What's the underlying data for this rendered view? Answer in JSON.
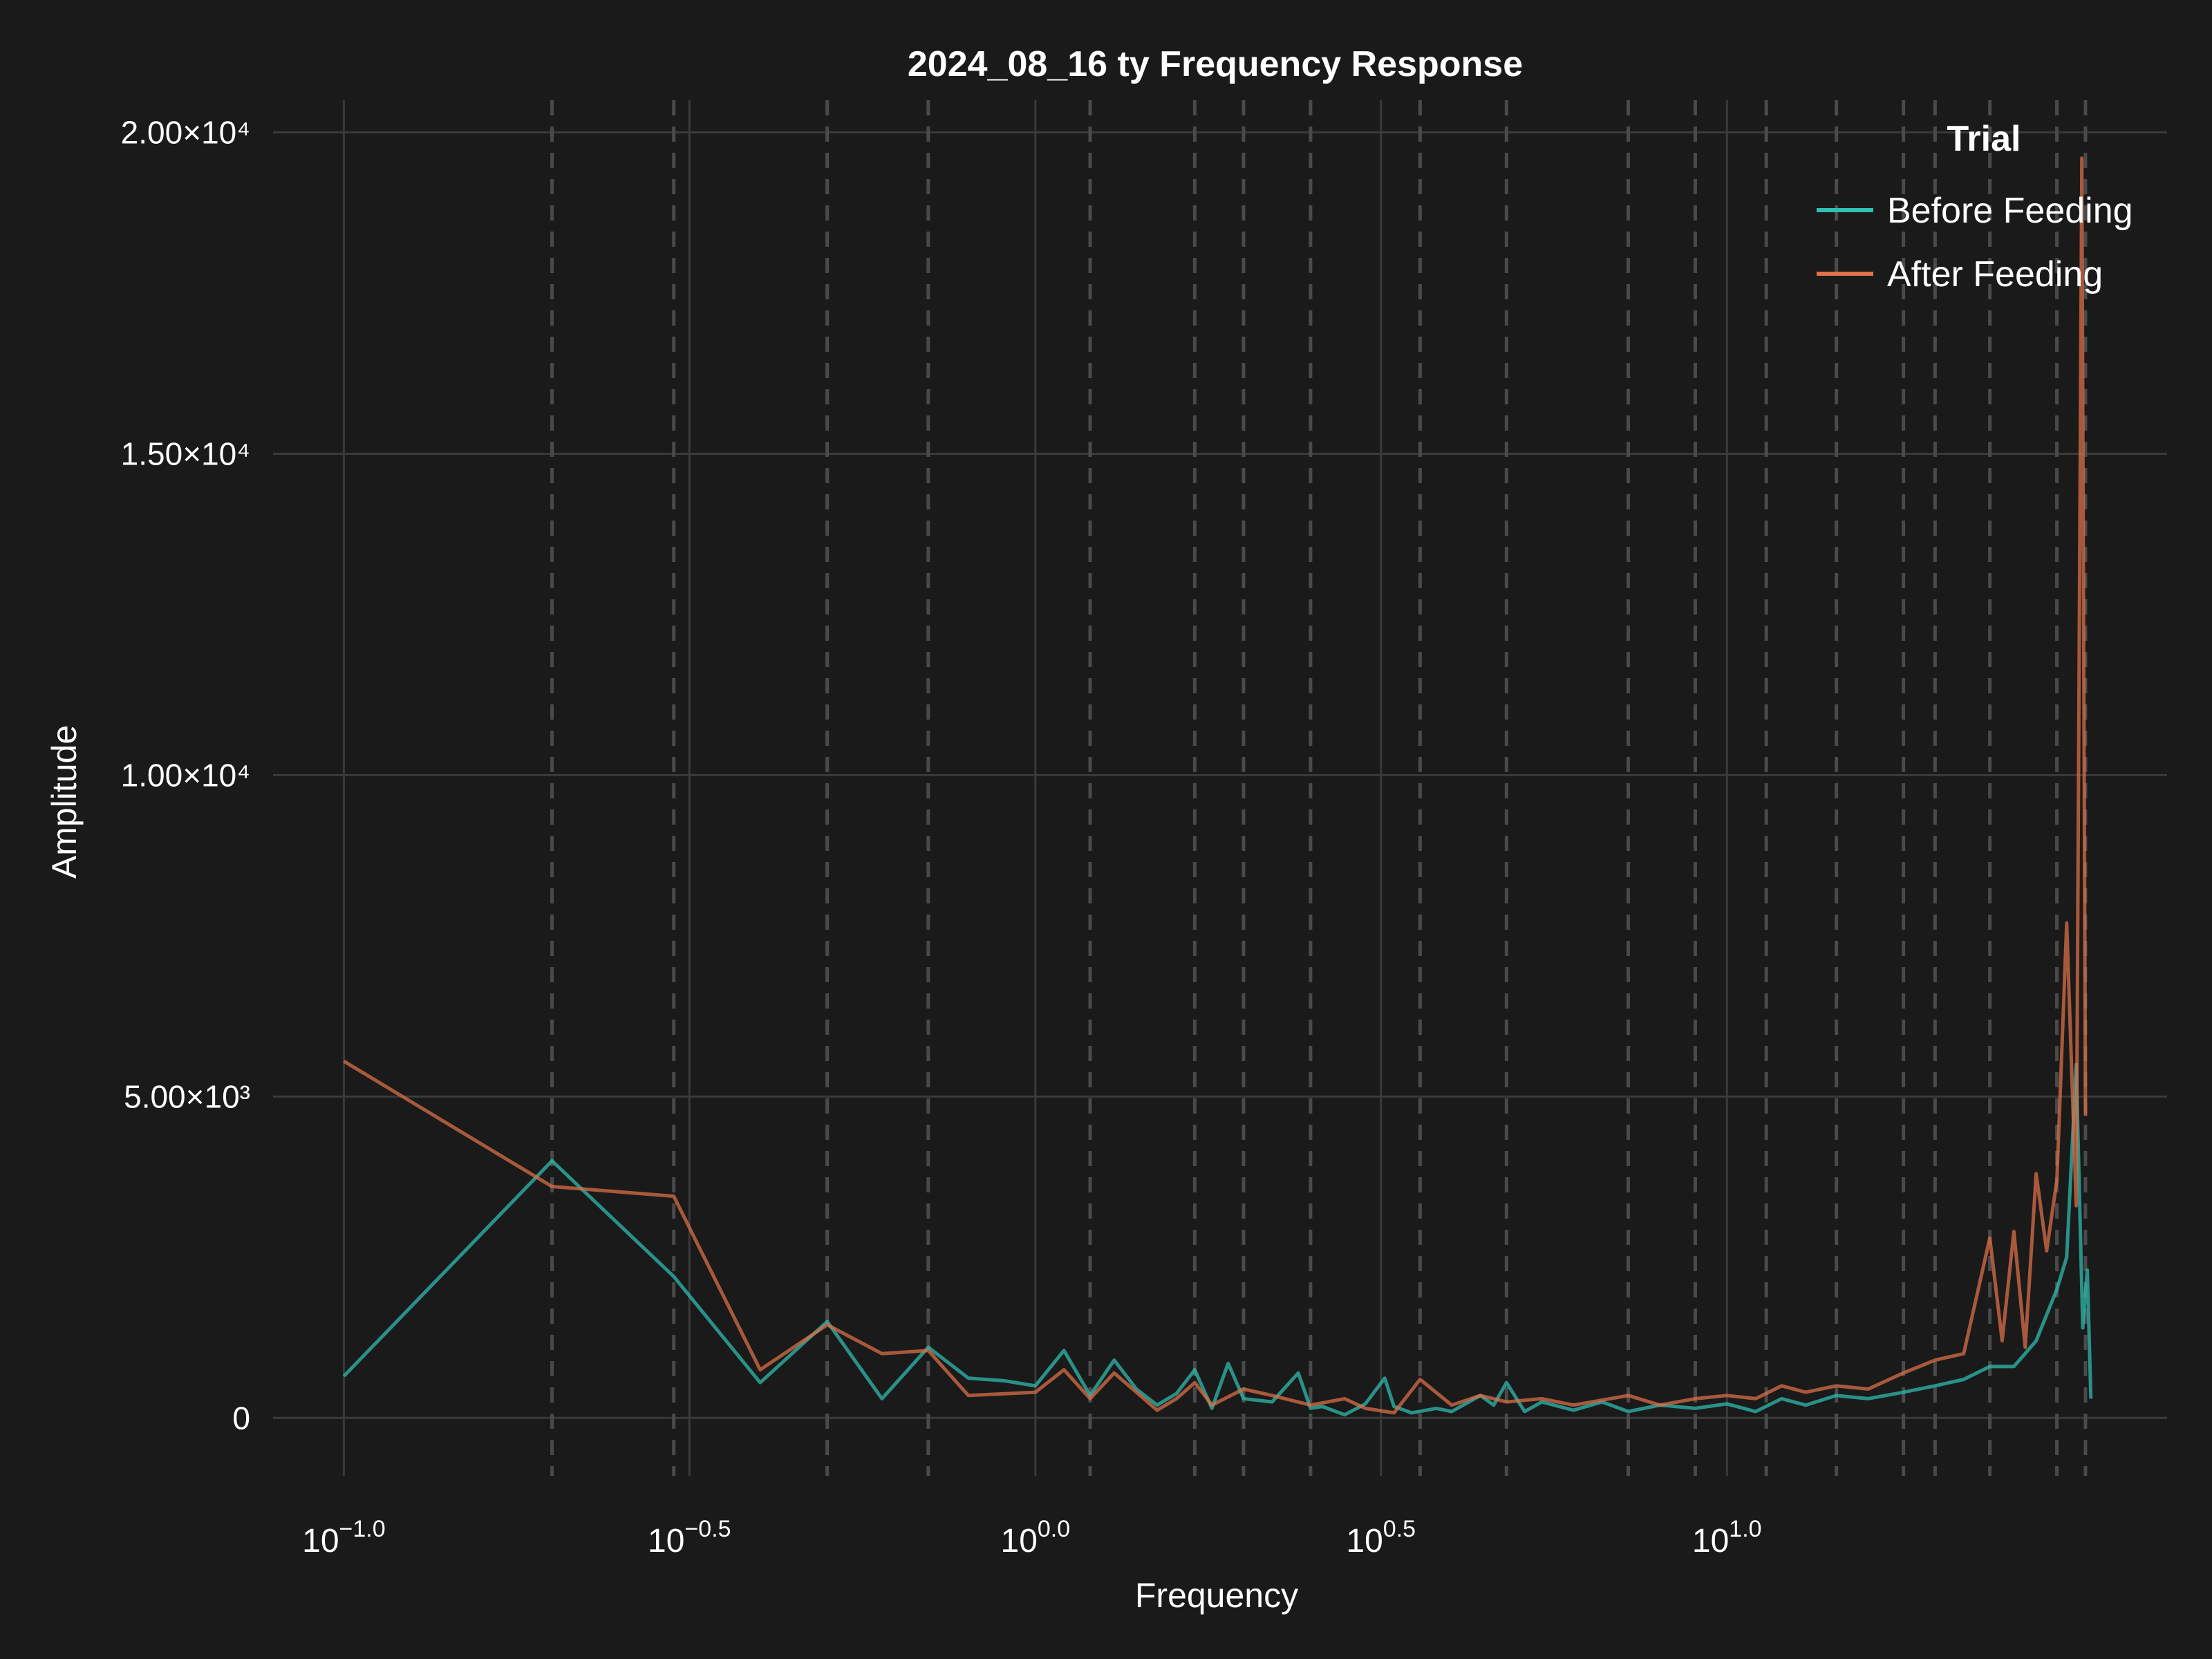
{
  "chart_data": {
    "type": "line",
    "title": "2024_08_16 ty Frequency Response",
    "xlabel": "Frequency",
    "ylabel": "Amplitude",
    "x_scale": "log10",
    "xlim": [
      0.079,
      43.3
    ],
    "ylim": [
      -900,
      20500
    ],
    "xticks": [
      {
        "value": 0.1,
        "base": "10",
        "exp": "−1.0"
      },
      {
        "value": 0.316,
        "base": "10",
        "exp": "−0.5"
      },
      {
        "value": 1.0,
        "base": "10",
        "exp": "0.0"
      },
      {
        "value": 3.16,
        "base": "10",
        "exp": "0.5"
      },
      {
        "value": 10.0,
        "base": "10",
        "exp": "1.0"
      }
    ],
    "yticks": [
      {
        "value": 0,
        "label": "0"
      },
      {
        "value": 5000,
        "label": "5.00×10³"
      },
      {
        "value": 10000,
        "label": "1.00×10⁴"
      },
      {
        "value": 15000,
        "label": "1.50×10⁴"
      },
      {
        "value": 20000,
        "label": "2.00×10⁴"
      }
    ],
    "vlines": [
      0.2,
      0.3,
      0.5,
      0.7,
      1.2,
      1.7,
      2.0,
      2.5,
      3.6,
      4.8,
      7.2,
      9.0,
      11.4,
      14.4,
      18.0,
      20.0,
      24.0,
      30.0,
      33.0
    ],
    "grid": true,
    "legend": {
      "title": "Trial",
      "position": "top-right"
    },
    "series": [
      {
        "name": "Before Feeding",
        "color": "#2fbfb3",
        "points": [
          [
            0.1,
            650
          ],
          [
            0.2,
            4000
          ],
          [
            0.3,
            2200
          ],
          [
            0.4,
            550
          ],
          [
            0.5,
            1500
          ],
          [
            0.6,
            300
          ],
          [
            0.7,
            1100
          ],
          [
            0.8,
            620
          ],
          [
            0.9,
            580
          ],
          [
            1.0,
            500
          ],
          [
            1.1,
            1050
          ],
          [
            1.2,
            350
          ],
          [
            1.3,
            900
          ],
          [
            1.4,
            450
          ],
          [
            1.5,
            200
          ],
          [
            1.6,
            380
          ],
          [
            1.7,
            750
          ],
          [
            1.8,
            150
          ],
          [
            1.9,
            850
          ],
          [
            2.0,
            300
          ],
          [
            2.2,
            250
          ],
          [
            2.4,
            700
          ],
          [
            2.5,
            150
          ],
          [
            2.6,
            180
          ],
          [
            2.8,
            50
          ],
          [
            3.0,
            220
          ],
          [
            3.2,
            620
          ],
          [
            3.3,
            180
          ],
          [
            3.5,
            80
          ],
          [
            3.8,
            150
          ],
          [
            4.0,
            100
          ],
          [
            4.4,
            350
          ],
          [
            4.6,
            200
          ],
          [
            4.8,
            550
          ],
          [
            5.1,
            100
          ],
          [
            5.4,
            250
          ],
          [
            6.0,
            120
          ],
          [
            6.6,
            250
          ],
          [
            7.2,
            100
          ],
          [
            8.0,
            200
          ],
          [
            9.0,
            150
          ],
          [
            10.0,
            220
          ],
          [
            11.0,
            100
          ],
          [
            12.0,
            300
          ],
          [
            13.0,
            200
          ],
          [
            14.4,
            350
          ],
          [
            16.0,
            300
          ],
          [
            18.0,
            400
          ],
          [
            20.0,
            500
          ],
          [
            22.0,
            600
          ],
          [
            24.0,
            800
          ],
          [
            26.0,
            800
          ],
          [
            28.0,
            1200
          ],
          [
            30.0,
            2000
          ],
          [
            31.0,
            2500
          ],
          [
            32.0,
            5500
          ],
          [
            32.7,
            1400
          ],
          [
            33.2,
            2300
          ],
          [
            33.6,
            300
          ]
        ]
      },
      {
        "name": "After Feeding",
        "color": "#e07248",
        "points": [
          [
            0.1,
            5550
          ],
          [
            0.2,
            3600
          ],
          [
            0.3,
            3450
          ],
          [
            0.4,
            750
          ],
          [
            0.5,
            1450
          ],
          [
            0.6,
            1000
          ],
          [
            0.7,
            1050
          ],
          [
            0.8,
            350
          ],
          [
            1.0,
            400
          ],
          [
            1.1,
            750
          ],
          [
            1.2,
            300
          ],
          [
            1.3,
            700
          ],
          [
            1.5,
            120
          ],
          [
            1.6,
            300
          ],
          [
            1.7,
            550
          ],
          [
            1.8,
            200
          ],
          [
            2.0,
            450
          ],
          [
            2.2,
            350
          ],
          [
            2.5,
            200
          ],
          [
            2.8,
            300
          ],
          [
            3.0,
            150
          ],
          [
            3.3,
            80
          ],
          [
            3.6,
            600
          ],
          [
            4.0,
            200
          ],
          [
            4.4,
            350
          ],
          [
            4.8,
            250
          ],
          [
            5.4,
            300
          ],
          [
            6.0,
            200
          ],
          [
            7.2,
            350
          ],
          [
            8.0,
            200
          ],
          [
            9.0,
            300
          ],
          [
            10.0,
            350
          ],
          [
            11.0,
            300
          ],
          [
            12.0,
            500
          ],
          [
            13.0,
            400
          ],
          [
            14.4,
            500
          ],
          [
            16.0,
            450
          ],
          [
            18.0,
            700
          ],
          [
            20.0,
            900
          ],
          [
            22.0,
            1000
          ],
          [
            24.0,
            2800
          ],
          [
            25.0,
            1200
          ],
          [
            26.0,
            2900
          ],
          [
            27.0,
            1100
          ],
          [
            28.0,
            3800
          ],
          [
            29.0,
            2600
          ],
          [
            30.0,
            3700
          ],
          [
            31.0,
            7700
          ],
          [
            32.0,
            3300
          ],
          [
            32.6,
            19600
          ],
          [
            33.0,
            4700
          ]
        ]
      }
    ]
  }
}
